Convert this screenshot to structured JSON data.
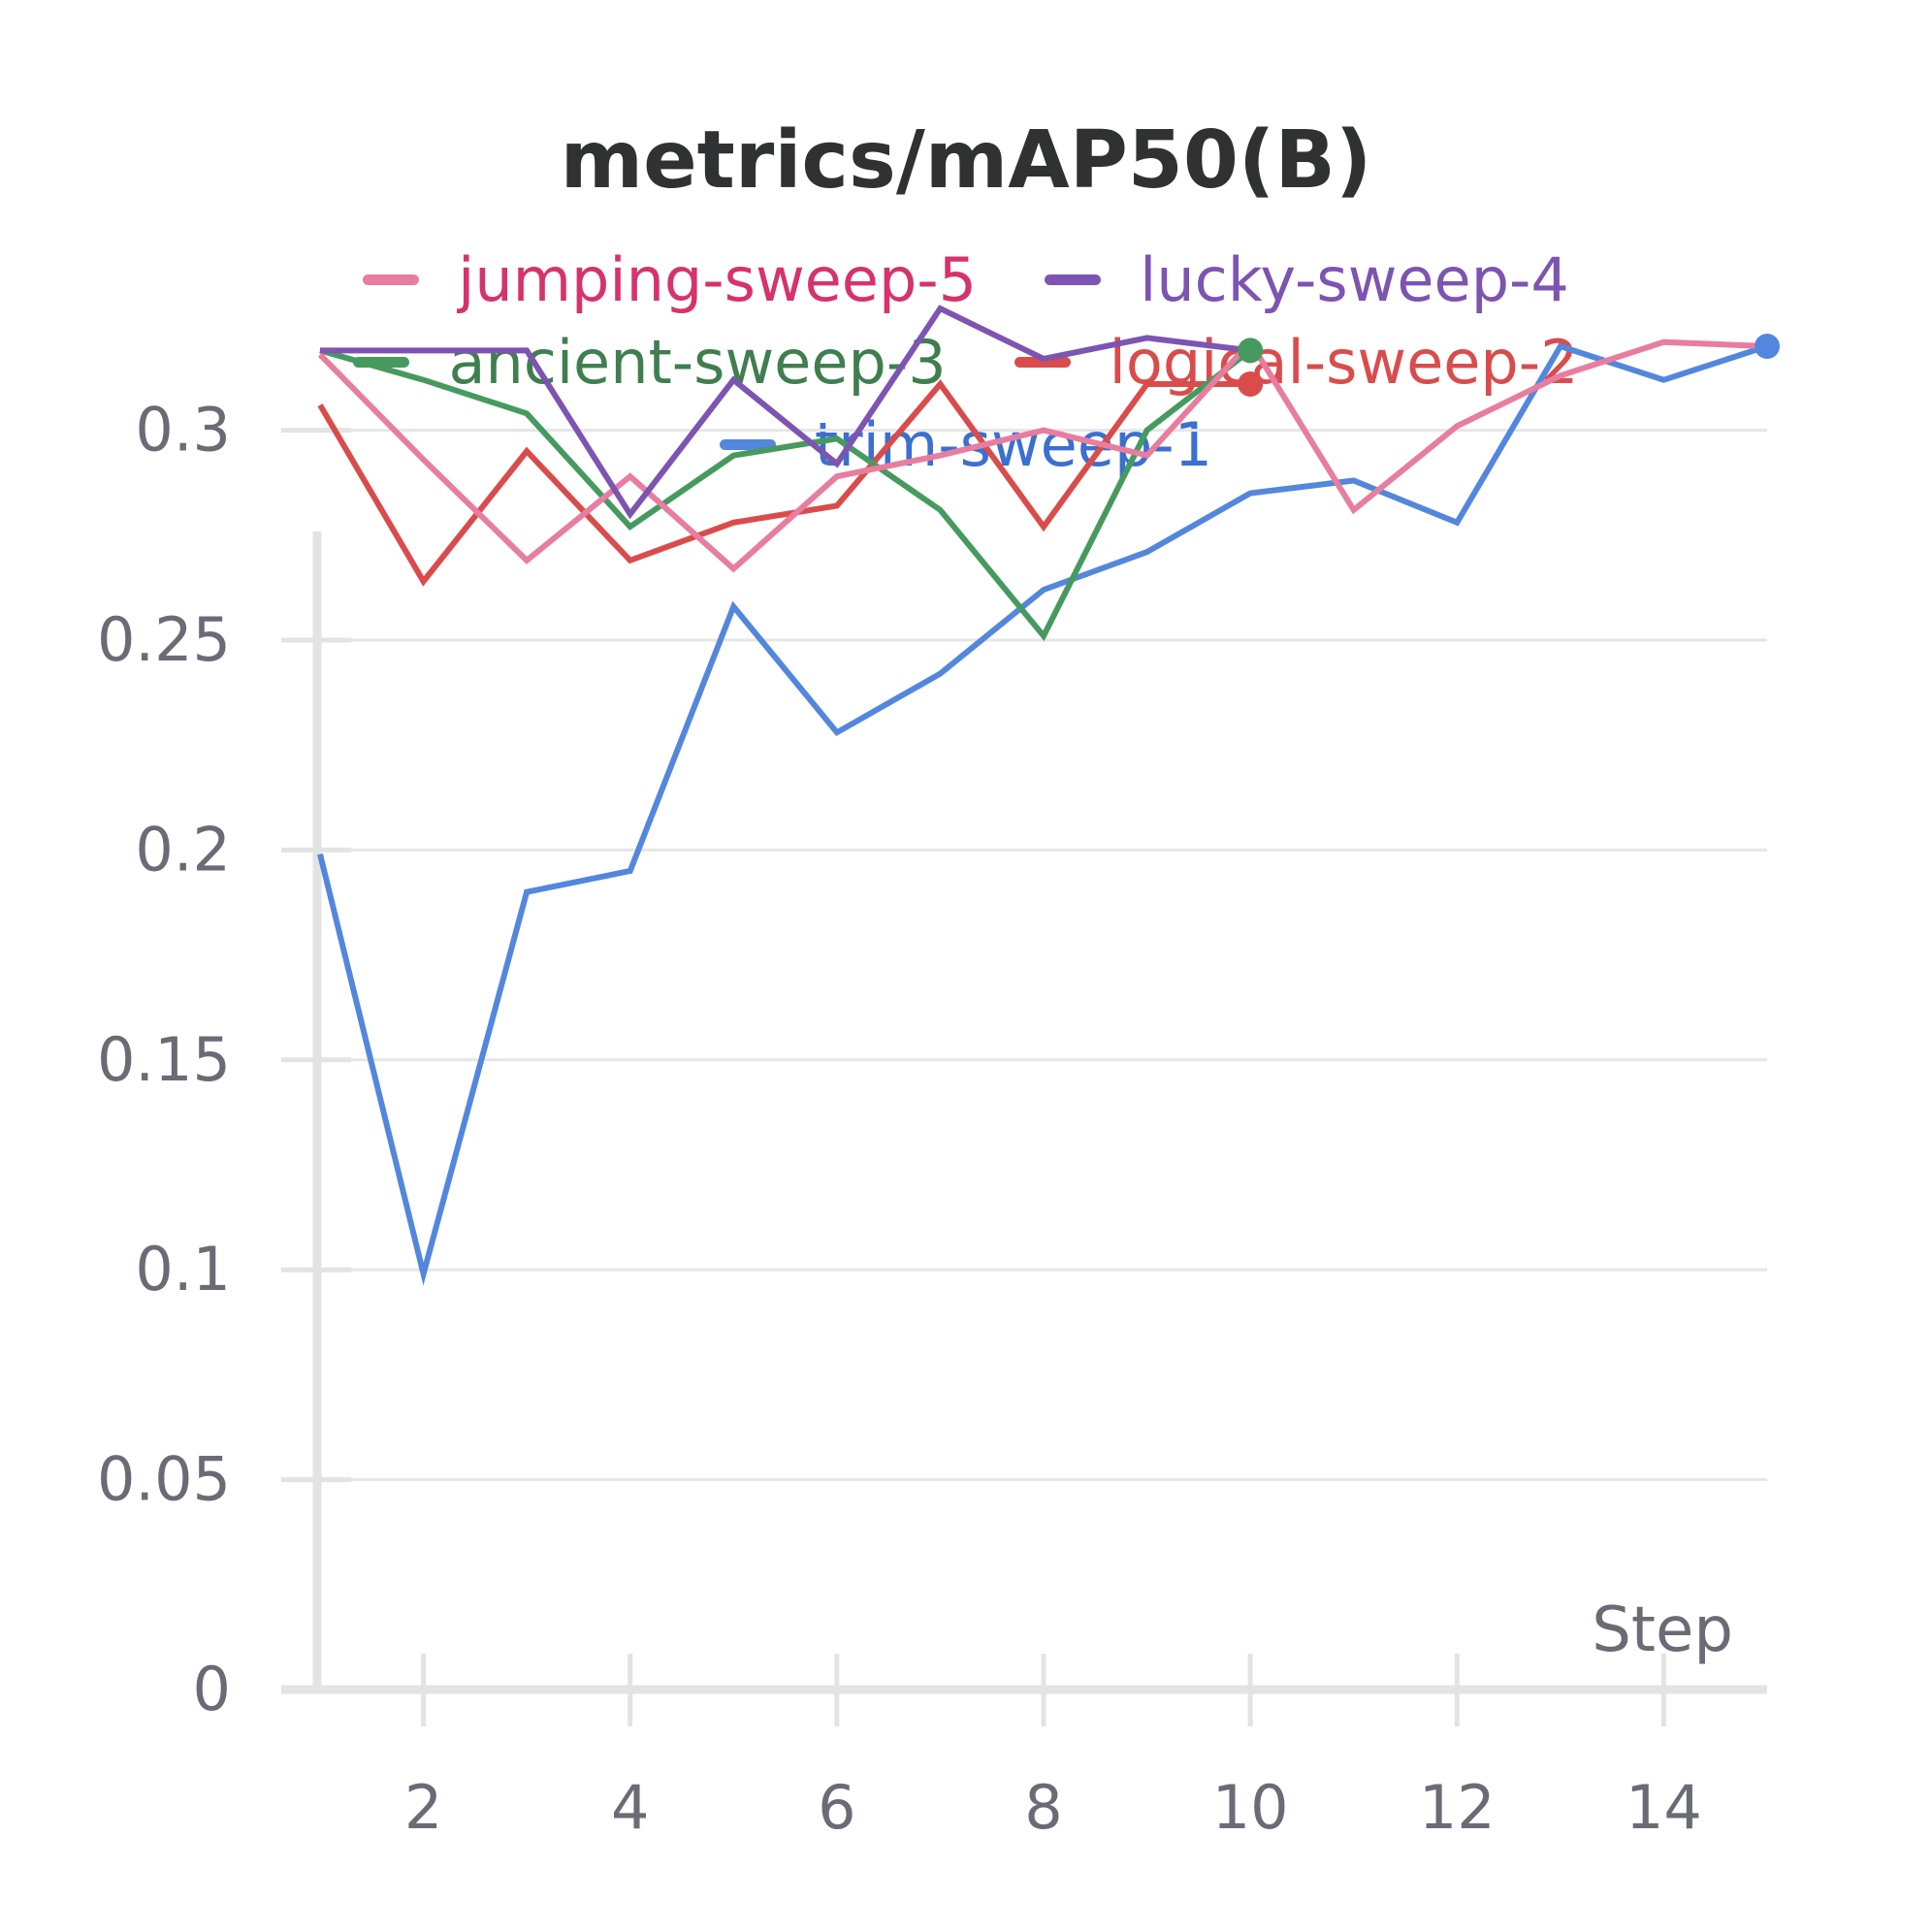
{
  "chart_data": {
    "type": "line",
    "title": "metrics/mAP50(B)",
    "xlabel": "Step",
    "ylabel": "",
    "xlim": [
      1,
      15
    ],
    "ylim": [
      0,
      0.33
    ],
    "x_ticks": [
      2,
      4,
      6,
      8,
      10,
      12,
      14
    ],
    "y_ticks": [
      0,
      0.05,
      0.1,
      0.15,
      0.2,
      0.25,
      0.3
    ],
    "y_tick_labels": [
      "0",
      "0.05",
      "0.1",
      "0.15",
      "0.2",
      "0.25",
      "0.3"
    ],
    "grid": true,
    "legend_position": "top",
    "series": [
      {
        "name": "jumping-sweep-5",
        "color": "#e87d9f",
        "label_color": "#d6336c",
        "x": [
          1,
          2,
          3,
          4,
          5,
          6,
          7,
          8,
          9,
          10,
          11,
          12,
          13,
          14,
          15
        ],
        "y": [
          0.318,
          0.293,
          0.269,
          0.289,
          0.267,
          0.289,
          0.294,
          0.3,
          0.294,
          0.321,
          0.281,
          0.301,
          0.313,
          0.321,
          0.32
        ]
      },
      {
        "name": "lucky-sweep-4",
        "color": "#7d54b2",
        "label_color": "#7d54b2",
        "x": [
          1,
          2,
          3,
          4,
          5,
          6,
          7,
          8,
          9,
          10
        ],
        "y": [
          0.319,
          0.319,
          0.319,
          0.28,
          0.312,
          0.292,
          0.329,
          0.317,
          0.322,
          0.319
        ]
      },
      {
        "name": "ancient-sweep-3",
        "color": "#479a5f",
        "label_color": "#3f7f4f",
        "x": [
          1,
          2,
          3,
          4,
          5,
          6,
          7,
          8,
          9,
          10
        ],
        "y": [
          0.319,
          0.312,
          0.304,
          0.277,
          0.294,
          0.298,
          0.281,
          0.251,
          0.3,
          0.319
        ]
      },
      {
        "name": "logical-sweep-2",
        "color": "#da4c4c",
        "label_color": "#da4c4c",
        "x": [
          1,
          2,
          3,
          4,
          5,
          6,
          7,
          8,
          9,
          10
        ],
        "y": [
          0.306,
          0.264,
          0.295,
          0.269,
          0.278,
          0.282,
          0.311,
          0.277,
          0.311,
          0.311
        ]
      },
      {
        "name": "trim-sweep-1",
        "color": "#5387dd",
        "label_color": "#3b6fd0",
        "x": [
          1,
          2,
          3,
          4,
          5,
          6,
          7,
          8,
          9,
          10,
          11,
          12,
          13,
          14,
          15
        ],
        "y": [
          0.199,
          0.099,
          0.19,
          0.195,
          0.258,
          0.228,
          0.242,
          0.262,
          0.271,
          0.285,
          0.288,
          0.278,
          0.32,
          0.312,
          0.32
        ]
      }
    ]
  }
}
